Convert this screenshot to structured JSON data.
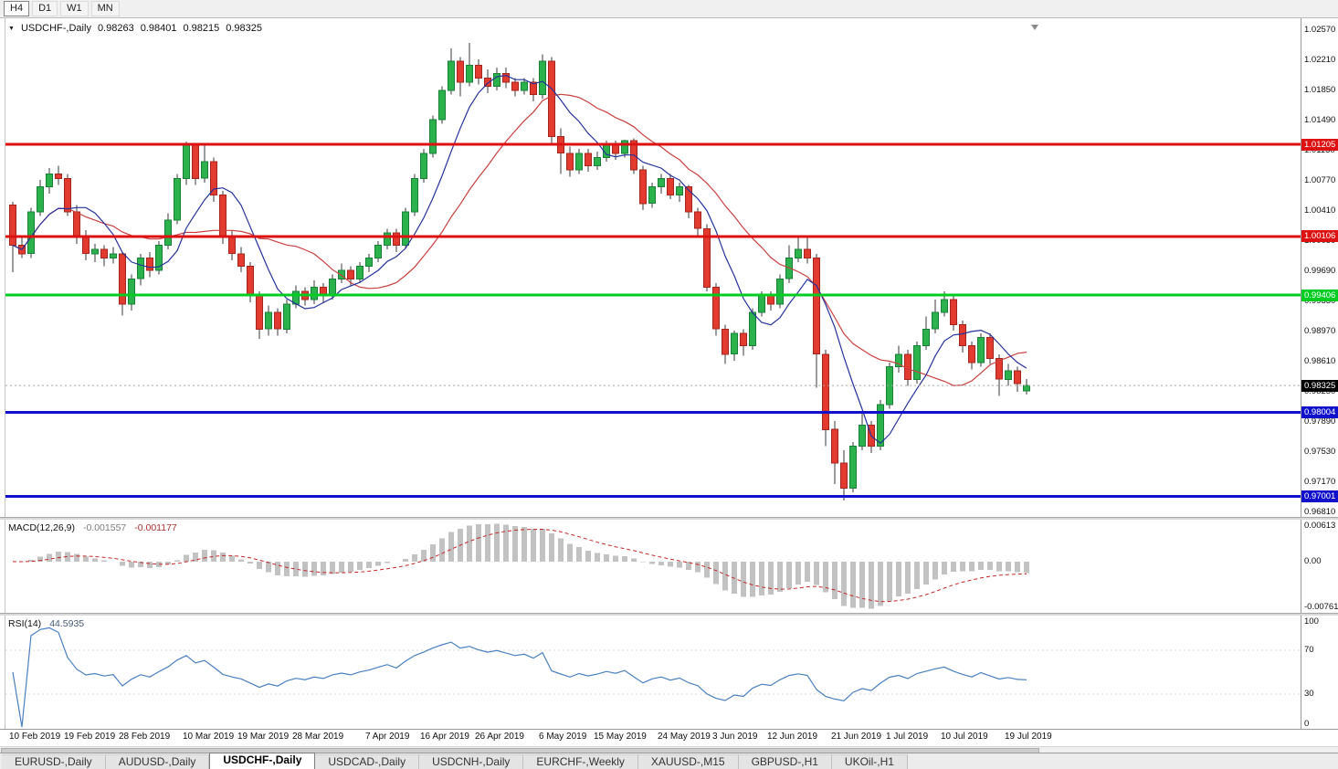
{
  "toolbar": {
    "buttons": [
      "H4",
      "D1",
      "W1",
      "MN"
    ],
    "boxed": "H4"
  },
  "header": {
    "dropdown_icon": "▼",
    "symbol": "USDCHF-,Daily",
    "open": "0.98263",
    "high": "0.98401",
    "low": "0.98215",
    "close": "0.98325"
  },
  "chart_data": {
    "type": "candlestick",
    "symbol": "USDCHF",
    "timeframe": "Daily",
    "up_color": "#2bb24c",
    "up_stroke": "#1a8038",
    "down_color": "#e23a2e",
    "down_stroke": "#a3251d",
    "wick_color": "#3a3a3a",
    "price_axis": {
      "top": 1.0257,
      "bottom": 0.9681,
      "tick_step": 0.0036,
      "ticks": [
        "1.02570",
        "1.02210",
        "1.01850",
        "1.01490",
        "1.01130",
        "1.00770",
        "1.00410",
        "1.00050",
        "0.99690",
        "0.99330",
        "0.98970",
        "0.98610",
        "0.98250",
        "0.97890",
        "0.97530",
        "0.97170",
        "0.96810"
      ]
    },
    "overlays": {
      "ma_fast": {
        "type": "sma",
        "period": 7,
        "color": "#26339b"
      },
      "ma_slow": {
        "type": "sma",
        "period": 16,
        "color": "#c94040"
      },
      "hlines": [
        {
          "price": 1.01205,
          "label": "1.01205",
          "color": "#dd1111"
        },
        {
          "price": 1.00106,
          "label": "1.00106",
          "color": "#dd1111"
        },
        {
          "price": 0.99406,
          "label": "0.99406",
          "color": "#00cc22"
        },
        {
          "price": 0.98004,
          "label": "0.98004",
          "color": "#1111cc"
        },
        {
          "price": 0.97001,
          "label": "0.97001",
          "color": "#1111cc"
        }
      ],
      "current_price": {
        "label": "0.98325",
        "price": 0.98325,
        "badge_bg": "#000000"
      }
    },
    "x_labels": [
      {
        "text": "10 Feb 2019",
        "i": 0
      },
      {
        "text": "19 Feb 2019",
        "i": 6
      },
      {
        "text": "28 Feb 2019",
        "i": 12
      },
      {
        "text": "10 Mar 2019",
        "i": 19
      },
      {
        "text": "19 Mar 2019",
        "i": 25
      },
      {
        "text": "28 Mar 2019",
        "i": 31
      },
      {
        "text": "7 Apr 2019",
        "i": 39
      },
      {
        "text": "16 Apr 2019",
        "i": 45
      },
      {
        "text": "26 Apr 2019",
        "i": 51
      },
      {
        "text": "6 May 2019",
        "i": 58
      },
      {
        "text": "15 May 2019",
        "i": 64
      },
      {
        "text": "24 May 2019",
        "i": 71
      },
      {
        "text": "3 Jun 2019",
        "i": 77
      },
      {
        "text": "12 Jun 2019",
        "i": 83
      },
      {
        "text": "21 Jun 2019",
        "i": 90
      },
      {
        "text": "1 Jul 2019",
        "i": 96
      },
      {
        "text": "10 Jul 2019",
        "i": 102
      },
      {
        "text": "19 Jul 2019",
        "i": 109
      }
    ],
    "candles": [
      [
        1.0048,
        1.0052,
        0.9968,
        1.0
      ],
      [
        1.0,
        1.0012,
        0.9985,
        0.999
      ],
      [
        0.999,
        1.0045,
        0.9985,
        1.004
      ],
      [
        1.004,
        1.0078,
        1.0035,
        1.007
      ],
      [
        1.007,
        1.0092,
        1.0062,
        1.0085
      ],
      [
        1.0085,
        1.0095,
        1.0072,
        1.008
      ],
      [
        1.008,
        1.0085,
        1.0035,
        1.004
      ],
      [
        1.004,
        1.0048,
        1.0002,
        1.001
      ],
      [
        1.001,
        1.0018,
        0.9982,
        0.999
      ],
      [
        0.999,
        1.0002,
        0.998,
        0.9995
      ],
      [
        0.9995,
        1.0,
        0.9975,
        0.9985
      ],
      [
        0.9985,
        0.9998,
        0.9978,
        0.999
      ],
      [
        0.999,
        0.9992,
        0.9916,
        0.993
      ],
      [
        0.993,
        0.9965,
        0.9922,
        0.996
      ],
      [
        0.996,
        0.999,
        0.9952,
        0.9985
      ],
      [
        0.9985,
        0.9992,
        0.9962,
        0.997
      ],
      [
        0.997,
        1.0005,
        0.9965,
        1.0
      ],
      [
        1.0,
        1.0038,
        0.9995,
        1.003
      ],
      [
        1.003,
        1.0085,
        1.0025,
        1.008
      ],
      [
        1.008,
        1.0124,
        1.0072,
        1.012
      ],
      [
        1.012,
        1.0122,
        1.0072,
        1.008
      ],
      [
        1.008,
        1.0119,
        1.0075,
        1.01
      ],
      [
        1.01,
        1.0105,
        1.0052,
        1.006
      ],
      [
        1.006,
        1.0065,
        1.0002,
        1.001
      ],
      [
        1.001,
        1.0018,
        0.9982,
        0.999
      ],
      [
        0.999,
        0.9998,
        0.9968,
        0.9975
      ],
      [
        0.9975,
        0.998,
        0.9932,
        0.994
      ],
      [
        0.994,
        0.9945,
        0.9888,
        0.99
      ],
      [
        0.99,
        0.9928,
        0.9892,
        0.992
      ],
      [
        0.992,
        0.9925,
        0.9892,
        0.99
      ],
      [
        0.99,
        0.9935,
        0.9895,
        0.993
      ],
      [
        0.993,
        0.9952,
        0.9925,
        0.9945
      ],
      [
        0.9945,
        0.995,
        0.9928,
        0.9935
      ],
      [
        0.9935,
        0.9958,
        0.993,
        0.995
      ],
      [
        0.995,
        0.9955,
        0.9932,
        0.994
      ],
      [
        0.994,
        0.9965,
        0.9935,
        0.996
      ],
      [
        0.996,
        0.9978,
        0.9955,
        0.997
      ],
      [
        0.997,
        0.9975,
        0.9952,
        0.996
      ],
      [
        0.996,
        0.998,
        0.9955,
        0.9975
      ],
      [
        0.9975,
        0.999,
        0.9968,
        0.9985
      ],
      [
        0.9985,
        1.0005,
        0.998,
        1.0
      ],
      [
        1.0,
        1.002,
        0.9995,
        1.0015
      ],
      [
        1.0015,
        1.002,
        0.9992,
        1.0
      ],
      [
        1.0,
        1.0045,
        0.9996,
        1.004
      ],
      [
        1.004,
        1.0085,
        1.0035,
        1.008
      ],
      [
        1.008,
        1.0115,
        1.0075,
        1.011
      ],
      [
        1.011,
        1.0155,
        1.0105,
        1.015
      ],
      [
        1.015,
        1.019,
        1.0145,
        1.0185
      ],
      [
        1.0185,
        1.0235,
        1.018,
        1.022
      ],
      [
        1.022,
        1.0225,
        1.0178,
        1.0195
      ],
      [
        1.0195,
        1.0242,
        1.019,
        1.0215
      ],
      [
        1.0215,
        1.0222,
        1.0192,
        1.02
      ],
      [
        1.02,
        1.021,
        1.0182,
        1.019
      ],
      [
        1.019,
        1.0212,
        1.0185,
        1.0205
      ],
      [
        1.0205,
        1.0212,
        1.0188,
        1.0195
      ],
      [
        1.0195,
        1.02,
        1.0178,
        1.0185
      ],
      [
        1.0185,
        1.02,
        1.018,
        1.0195
      ],
      [
        1.0195,
        1.02,
        1.0172,
        1.018
      ],
      [
        1.018,
        1.0228,
        1.0175,
        1.022
      ],
      [
        1.022,
        1.0225,
        1.0122,
        1.013
      ],
      [
        1.013,
        1.014,
        1.0085,
        1.011
      ],
      [
        1.011,
        1.0118,
        1.0082,
        1.009
      ],
      [
        1.009,
        1.0115,
        1.0085,
        1.011
      ],
      [
        1.011,
        1.0115,
        1.0088,
        1.0095
      ],
      [
        1.0095,
        1.0112,
        1.009,
        1.0105
      ],
      [
        1.0105,
        1.0125,
        1.01,
        1.012
      ],
      [
        1.012,
        1.0125,
        1.0102,
        1.011
      ],
      [
        1.011,
        1.0126,
        1.0105,
        1.0125
      ],
      [
        1.0125,
        1.0128,
        1.0085,
        1.009
      ],
      [
        1.009,
        1.0095,
        1.0042,
        1.005
      ],
      [
        1.005,
        1.0075,
        1.0045,
        1.007
      ],
      [
        1.007,
        1.0085,
        1.0062,
        1.008
      ],
      [
        1.008,
        1.0085,
        1.0055,
        1.006
      ],
      [
        1.006,
        1.0075,
        1.0052,
        1.007
      ],
      [
        1.007,
        1.0072,
        1.0032,
        1.004
      ],
      [
        1.004,
        1.0045,
        1.0012,
        1.002
      ],
      [
        1.002,
        1.0025,
        0.9945,
        0.995
      ],
      [
        0.995,
        0.9955,
        0.9892,
        0.99
      ],
      [
        0.99,
        0.9905,
        0.9858,
        0.987
      ],
      [
        0.987,
        0.9898,
        0.9862,
        0.9895
      ],
      [
        0.9895,
        0.99,
        0.9868,
        0.988
      ],
      [
        0.988,
        0.9925,
        0.9875,
        0.992
      ],
      [
        0.992,
        0.9945,
        0.9915,
        0.994
      ],
      [
        0.994,
        0.9945,
        0.9922,
        0.993
      ],
      [
        0.993,
        0.9965,
        0.9925,
        0.996
      ],
      [
        0.996,
        1.0,
        0.9955,
        0.9985
      ],
      [
        0.9985,
        1.001,
        0.998,
        0.9995
      ],
      [
        0.9995,
        1.001,
        0.9978,
        0.9985
      ],
      [
        0.9985,
        0.999,
        0.983,
        0.987
      ],
      [
        0.987,
        0.9875,
        0.976,
        0.978
      ],
      [
        0.978,
        0.979,
        0.9715,
        0.974
      ],
      [
        0.974,
        0.9755,
        0.9695,
        0.971
      ],
      [
        0.971,
        0.9765,
        0.9705,
        0.976
      ],
      [
        0.976,
        0.98,
        0.9755,
        0.9785
      ],
      [
        0.9785,
        0.979,
        0.9752,
        0.976
      ],
      [
        0.976,
        0.9815,
        0.9755,
        0.981
      ],
      [
        0.981,
        0.986,
        0.9805,
        0.9855
      ],
      [
        0.9855,
        0.988,
        0.9848,
        0.987
      ],
      [
        0.987,
        0.9875,
        0.9832,
        0.984
      ],
      [
        0.984,
        0.9885,
        0.9835,
        0.988
      ],
      [
        0.988,
        0.9915,
        0.9875,
        0.99
      ],
      [
        0.99,
        0.9935,
        0.9895,
        0.992
      ],
      [
        0.992,
        0.9945,
        0.9915,
        0.9935
      ],
      [
        0.9935,
        0.994,
        0.9898,
        0.9905
      ],
      [
        0.9905,
        0.991,
        0.9872,
        0.988
      ],
      [
        0.988,
        0.9885,
        0.9852,
        0.986
      ],
      [
        0.986,
        0.9895,
        0.9855,
        0.989
      ],
      [
        0.989,
        0.9895,
        0.9858,
        0.9865
      ],
      [
        0.9865,
        0.987,
        0.982,
        0.984
      ],
      [
        0.984,
        0.9858,
        0.9832,
        0.985
      ],
      [
        0.985,
        0.9855,
        0.9825,
        0.9835
      ],
      [
        0.98263,
        0.98401,
        0.98215,
        0.98325
      ]
    ]
  },
  "macd": {
    "title": "MACD(12,26,9)",
    "fast": 12,
    "slow": 26,
    "signal": 9,
    "value_main": "-0.001557",
    "value_signal": "-0.001177",
    "axis": {
      "max_label": "0.00613",
      "zero_label": "0.00",
      "min_label": "-0.007612",
      "max": 0.00613,
      "min": -0.007612
    },
    "hist_color": "#c2c2c2",
    "signal_color": "#c62828"
  },
  "rsi": {
    "title": "RSI(14)",
    "period": 14,
    "value": "44.5935",
    "axis_labels": [
      "100",
      "70",
      "30",
      "0"
    ],
    "levels": [
      70,
      30
    ],
    "line_color": "#4a80c0"
  },
  "tabs": {
    "items": [
      "EURUSD-,Daily",
      "AUDUSD-,Daily",
      "USDCHF-,Daily",
      "USDCAD-,Daily",
      "USDCNH-,Daily",
      "EURCHF-,Weekly",
      "XAUUSD-,M15",
      "GBPUSD-,H1",
      "UKOil-,H1"
    ],
    "active": "USDCHF-,Daily"
  }
}
